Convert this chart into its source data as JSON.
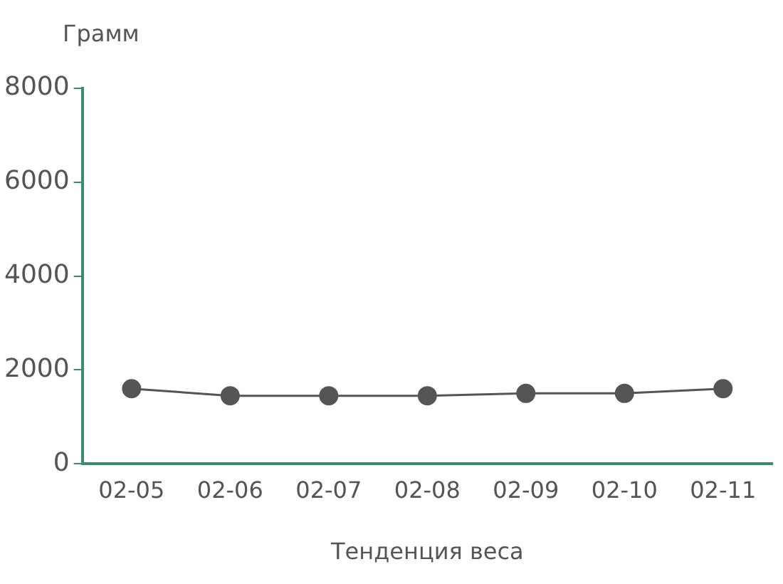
{
  "chart_data": {
    "type": "line",
    "xlabel": "Тенденция веса",
    "ylabel": "Грамм",
    "categories": [
      "02-05",
      "02-06",
      "02-07",
      "02-08",
      "02-09",
      "02-10",
      "02-11"
    ],
    "series": [
      {
        "color": "#555555",
        "values": [
          1600,
          1450,
          1450,
          1450,
          1500,
          1500,
          1600
        ]
      }
    ],
    "ylim": [
      0,
      8000
    ],
    "yticks": [
      0,
      2000,
      4000,
      6000,
      8000
    ],
    "grid": false,
    "legend": false,
    "marker": "circle",
    "line_style": "solid"
  }
}
